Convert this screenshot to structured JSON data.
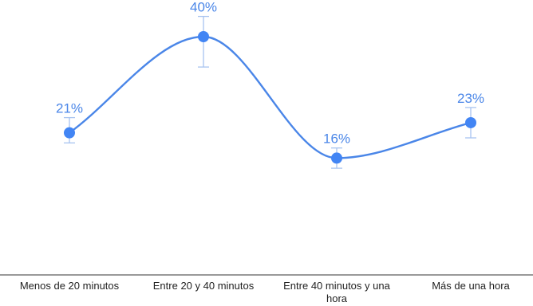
{
  "chart_data": {
    "type": "line",
    "smooth": true,
    "title": "",
    "xlabel": "",
    "ylabel": "",
    "ylim": [
      0,
      50
    ],
    "grid": false,
    "legend": "none",
    "categories": [
      [
        "Menos de 20 minutos"
      ],
      [
        "Entre 20 y 40 minutos"
      ],
      [
        "Entre 40 minutos y una",
        "hora"
      ],
      [
        "Más de una hora"
      ]
    ],
    "series": [
      {
        "values": [
          21,
          40,
          16,
          23
        ],
        "labels": [
          "21%",
          "40%",
          "16%",
          "23%"
        ],
        "error_low": [
          19,
          34,
          14,
          20
        ],
        "error_high": [
          24,
          44,
          18,
          26
        ]
      }
    ],
    "colors": {
      "line": "#4a86e8",
      "point": "#4285f4",
      "error_bar": "#a8c4f0",
      "label": "#4a86e8",
      "axis": "#333333"
    }
  }
}
